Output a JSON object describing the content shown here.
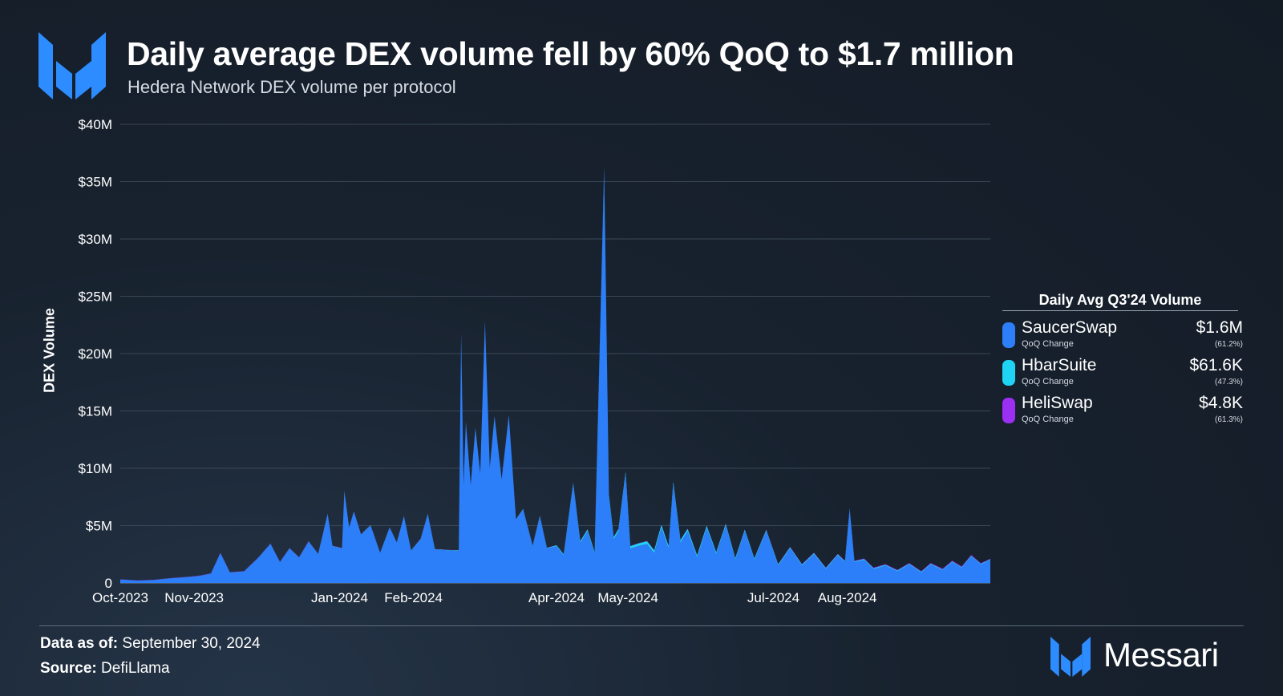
{
  "header": {
    "title": "Daily average DEX volume fell by 60% QoQ to $1.7 million",
    "subtitle": "Hedera Network DEX volume per protocol"
  },
  "colors": {
    "saucerswap": "#2d7ff9",
    "hbarsuite": "#1fd3f5",
    "heliswap": "#9b2ff2",
    "accent": "#2d8cff"
  },
  "chart_data": {
    "type": "area",
    "stacked": true,
    "ylabel": "DEX Volume",
    "ylim": [
      0,
      40000000
    ],
    "yticks": [
      0,
      5000000,
      10000000,
      15000000,
      20000000,
      25000000,
      30000000,
      35000000,
      40000000
    ],
    "ytick_labels": [
      "0",
      "$5M",
      "$10M",
      "$15M",
      "$20M",
      "$25M",
      "$30M",
      "$35M",
      "$40M"
    ],
    "xlim": [
      "2023-10-01",
      "2024-09-30"
    ],
    "xticks": [
      "2023-10-01",
      "2023-11-01",
      "2024-01-01",
      "2024-02-01",
      "2024-04-01",
      "2024-05-01",
      "2024-07-01",
      "2024-08-01"
    ],
    "xtick_labels": [
      "Oct-2023",
      "Nov-2023",
      "Jan-2024",
      "Feb-2024",
      "Apr-2024",
      "May-2024",
      "Jul-2024",
      "Aug-2024"
    ],
    "grid": "horizontal",
    "legend_position": "right",
    "series": [
      {
        "name": "SaucerSwap",
        "points": [
          [
            "2023-10-01",
            0.3
          ],
          [
            "2023-10-08",
            0.2
          ],
          [
            "2023-10-15",
            0.25
          ],
          [
            "2023-10-22",
            0.4
          ],
          [
            "2023-10-29",
            0.5
          ],
          [
            "2023-11-03",
            0.6
          ],
          [
            "2023-11-08",
            0.8
          ],
          [
            "2023-11-12",
            2.6
          ],
          [
            "2023-11-16",
            0.9
          ],
          [
            "2023-11-22",
            1.0
          ],
          [
            "2023-11-28",
            2.2
          ],
          [
            "2023-12-03",
            3.4
          ],
          [
            "2023-12-07",
            1.8
          ],
          [
            "2023-12-11",
            3.0
          ],
          [
            "2023-12-15",
            2.2
          ],
          [
            "2023-12-19",
            3.6
          ],
          [
            "2023-12-23",
            2.5
          ],
          [
            "2023-12-27",
            6.0
          ],
          [
            "2023-12-29",
            3.2
          ],
          [
            "2024-01-02",
            3.0
          ],
          [
            "2024-01-03",
            8.0
          ],
          [
            "2024-01-05",
            4.8
          ],
          [
            "2024-01-07",
            6.2
          ],
          [
            "2024-01-10",
            4.2
          ],
          [
            "2024-01-14",
            5.0
          ],
          [
            "2024-01-18",
            2.6
          ],
          [
            "2024-01-22",
            4.8
          ],
          [
            "2024-01-25",
            3.5
          ],
          [
            "2024-01-28",
            5.8
          ],
          [
            "2024-01-31",
            2.8
          ],
          [
            "2024-02-04",
            3.8
          ],
          [
            "2024-02-07",
            6.0
          ],
          [
            "2024-02-10",
            2.9
          ],
          [
            "2024-02-18",
            2.8
          ],
          [
            "2024-02-20",
            2.8
          ],
          [
            "2024-02-21",
            21.8
          ],
          [
            "2024-02-22",
            8.5
          ],
          [
            "2024-02-23",
            14.0
          ],
          [
            "2024-02-25",
            8.5
          ],
          [
            "2024-02-27",
            13.5
          ],
          [
            "2024-02-29",
            9.5
          ],
          [
            "2024-03-02",
            22.8
          ],
          [
            "2024-03-04",
            10.0
          ],
          [
            "2024-03-06",
            14.5
          ],
          [
            "2024-03-09",
            9.0
          ],
          [
            "2024-03-12",
            14.6
          ],
          [
            "2024-03-15",
            5.5
          ],
          [
            "2024-03-18",
            6.4
          ],
          [
            "2024-03-22",
            3.2
          ],
          [
            "2024-03-25",
            5.8
          ],
          [
            "2024-03-28",
            3.0
          ],
          [
            "2024-04-01",
            3.2
          ],
          [
            "2024-04-04",
            2.4
          ],
          [
            "2024-04-08",
            8.6
          ],
          [
            "2024-04-11",
            3.5
          ],
          [
            "2024-04-14",
            4.5
          ],
          [
            "2024-04-17",
            2.5
          ],
          [
            "2024-04-21",
            36.2
          ],
          [
            "2024-04-23",
            7.5
          ],
          [
            "2024-04-25",
            3.8
          ],
          [
            "2024-04-27",
            4.5
          ],
          [
            "2024-04-30",
            9.5
          ],
          [
            "2024-05-02",
            3.0
          ],
          [
            "2024-05-05",
            3.2
          ],
          [
            "2024-05-09",
            3.4
          ],
          [
            "2024-05-12",
            2.6
          ],
          [
            "2024-05-15",
            4.8
          ],
          [
            "2024-05-18",
            3.0
          ],
          [
            "2024-05-20",
            8.6
          ],
          [
            "2024-05-23",
            3.5
          ],
          [
            "2024-05-26",
            4.5
          ],
          [
            "2024-05-30",
            2.2
          ],
          [
            "2024-06-03",
            4.8
          ],
          [
            "2024-06-07",
            2.5
          ],
          [
            "2024-06-11",
            5.0
          ],
          [
            "2024-06-15",
            2.0
          ],
          [
            "2024-06-19",
            4.5
          ],
          [
            "2024-06-23",
            2.0
          ],
          [
            "2024-06-28",
            4.5
          ],
          [
            "2024-07-03",
            1.5
          ],
          [
            "2024-07-08",
            3.0
          ],
          [
            "2024-07-13",
            1.5
          ],
          [
            "2024-07-18",
            2.5
          ],
          [
            "2024-07-23",
            1.2
          ],
          [
            "2024-07-28",
            2.4
          ],
          [
            "2024-07-31",
            1.8
          ],
          [
            "2024-08-02",
            6.4
          ],
          [
            "2024-08-04",
            1.8
          ],
          [
            "2024-08-08",
            2.0
          ],
          [
            "2024-08-12",
            1.2
          ],
          [
            "2024-08-17",
            1.5
          ],
          [
            "2024-08-22",
            1.0
          ],
          [
            "2024-08-27",
            1.6
          ],
          [
            "2024-09-01",
            0.9
          ],
          [
            "2024-09-05",
            1.6
          ],
          [
            "2024-09-10",
            1.1
          ],
          [
            "2024-09-14",
            1.8
          ],
          [
            "2024-09-18",
            1.3
          ],
          [
            "2024-09-22",
            2.3
          ],
          [
            "2024-09-26",
            1.6
          ],
          [
            "2024-09-30",
            2.0
          ]
        ]
      },
      {
        "name": "HbarSuite",
        "points": [
          [
            "2023-10-01",
            0.0
          ],
          [
            "2024-03-28",
            0.05
          ],
          [
            "2024-04-11",
            0.15
          ],
          [
            "2024-05-15",
            0.25
          ],
          [
            "2024-06-11",
            0.15
          ],
          [
            "2024-07-08",
            0.1
          ],
          [
            "2024-08-08",
            0.08
          ],
          [
            "2024-09-30",
            0.06
          ]
        ]
      },
      {
        "name": "HeliSwap",
        "points": [
          [
            "2023-10-01",
            0.02
          ],
          [
            "2023-12-15",
            0.03
          ],
          [
            "2024-02-20",
            0.02
          ],
          [
            "2024-05-12",
            0.03
          ],
          [
            "2024-07-18",
            0.05
          ],
          [
            "2024-08-22",
            0.06
          ],
          [
            "2024-09-22",
            0.08
          ],
          [
            "2024-09-30",
            0.05
          ]
        ]
      }
    ]
  },
  "legend": {
    "title": "Daily Avg Q3'24 Volume",
    "items": [
      {
        "name": "SaucerSwap",
        "sub": "QoQ Change",
        "value": "$1.6M",
        "change": "(61.2%)"
      },
      {
        "name": "HbarSuite",
        "sub": "QoQ Change",
        "value": "$61.6K",
        "change": "(47.3%)"
      },
      {
        "name": "HeliSwap",
        "sub": "QoQ Change",
        "value": "$4.8K",
        "change": "(61.3%)"
      }
    ]
  },
  "footer": {
    "data_as_of_label": "Data as of:",
    "data_as_of_value": "September 30, 2024",
    "source_label": "Source:",
    "source_value": "DefiLlama",
    "brand": "Messari"
  }
}
